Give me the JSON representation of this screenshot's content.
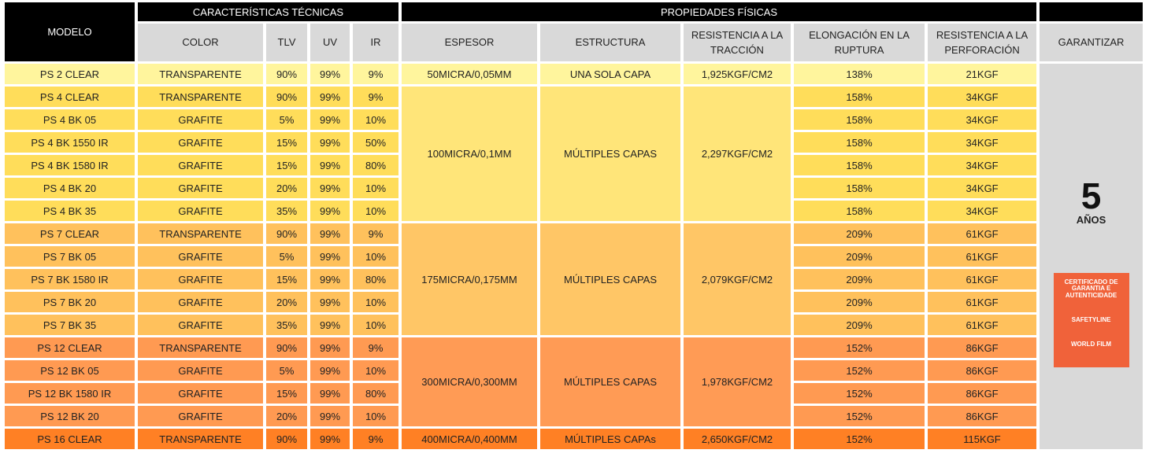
{
  "header": {
    "model": "MODELO",
    "groups": [
      "CARACTERÍSTICAS TÉCNICAS",
      "PROPIEDADES FÍSICAS"
    ],
    "columns": [
      "COLOR",
      "TLV",
      "UV",
      "IR",
      "ESPESOR",
      "ESTRUCTURA",
      "RESISTENCIA A LA TRACCIÓN",
      "ELONGACIÓN EN LA RUPTURA",
      "RESISTENCIA A LA PERFORACIÓN",
      "GARANTIZAR"
    ]
  },
  "table": {
    "groups": [
      {
        "thickness": "50MICRA/0,05MM",
        "structure": "UNA SOLA CAPA",
        "tensile": "1,925KGF/CM2",
        "rows": [
          [
            "PS 2 CLEAR",
            "TRANSPARENTE",
            "90%",
            "99%",
            "9%",
            "138%",
            "21KGF"
          ]
        ]
      },
      {
        "thickness": "100MICRA/0,1MM",
        "structure": "MÚLTIPLES CAPAS",
        "tensile": "2,297KGF/CM2",
        "rows": [
          [
            "PS 4 CLEAR",
            "TRANSPARENTE",
            "90%",
            "99%",
            "9%",
            "158%",
            "34KGF"
          ],
          [
            "PS 4 BK 05",
            "GRAFITE",
            "5%",
            "99%",
            "10%",
            "158%",
            "34KGF"
          ],
          [
            "PS 4 BK 1550 IR",
            "GRAFITE",
            "15%",
            "99%",
            "50%",
            "158%",
            "34KGF"
          ],
          [
            "PS 4 BK 1580 IR",
            "GRAFITE",
            "15%",
            "99%",
            "80%",
            "158%",
            "34KGF"
          ],
          [
            "PS 4 BK 20",
            "GRAFITE",
            "20%",
            "99%",
            "10%",
            "158%",
            "34KGF"
          ],
          [
            "PS 4 BK 35",
            "GRAFITE",
            "35%",
            "99%",
            "10%",
            "158%",
            "34KGF"
          ]
        ]
      },
      {
        "thickness": "175MICRA/0,175MM",
        "structure": "MÚLTIPLES CAPAS",
        "tensile": "2,079KGF/CM2",
        "rows": [
          [
            "PS 7 CLEAR",
            "TRANSPARENTE",
            "90%",
            "99%",
            "9%",
            "209%",
            "61KGF"
          ],
          [
            "PS 7 BK 05",
            "GRAFITE",
            "5%",
            "99%",
            "10%",
            "209%",
            "61KGF"
          ],
          [
            "PS 7 BK 1580 IR",
            "GRAFITE",
            "15%",
            "99%",
            "80%",
            "209%",
            "61KGF"
          ],
          [
            "PS 7 BK 20",
            "GRAFITE",
            "20%",
            "99%",
            "10%",
            "209%",
            "61KGF"
          ],
          [
            "PS 7 BK 35",
            "GRAFITE",
            "35%",
            "99%",
            "10%",
            "209%",
            "61KGF"
          ]
        ]
      },
      {
        "thickness": "300MICRA/0,300MM",
        "structure": "MÚLTIPLES CAPAS",
        "tensile": "1,978KGF/CM2",
        "rows": [
          [
            "PS 12 CLEAR",
            "TRANSPARENTE",
            "90%",
            "99%",
            "9%",
            "152%",
            "86KGF"
          ],
          [
            "PS 12 BK 05",
            "GRAFITE",
            "5%",
            "99%",
            "10%",
            "152%",
            "86KGF"
          ],
          [
            "PS 12 BK 1580 IR",
            "GRAFITE",
            "15%",
            "99%",
            "80%",
            "152%",
            "86KGF"
          ],
          [
            "PS 12 BK 20",
            "GRAFITE",
            "20%",
            "99%",
            "10%",
            "152%",
            "86KGF"
          ]
        ]
      },
      {
        "thickness": "400MICRA/0,400MM",
        "structure": "MÚLTIPLES CAPAs",
        "tensile": "2,650KGF/CM2",
        "rows": [
          [
            "PS 16 CLEAR",
            "TRANSPARENTE",
            "90%",
            "99%",
            "9%",
            "152%",
            "115KGF"
          ]
        ]
      }
    ]
  },
  "warranty": {
    "years": "5",
    "unit": "AÑOS",
    "certificate": {
      "title": "CERTIFICADO DE GARANTIA E AUTENTICIDADE",
      "brand": "SAFETYLINE",
      "maker": "WORLD FILM"
    }
  }
}
